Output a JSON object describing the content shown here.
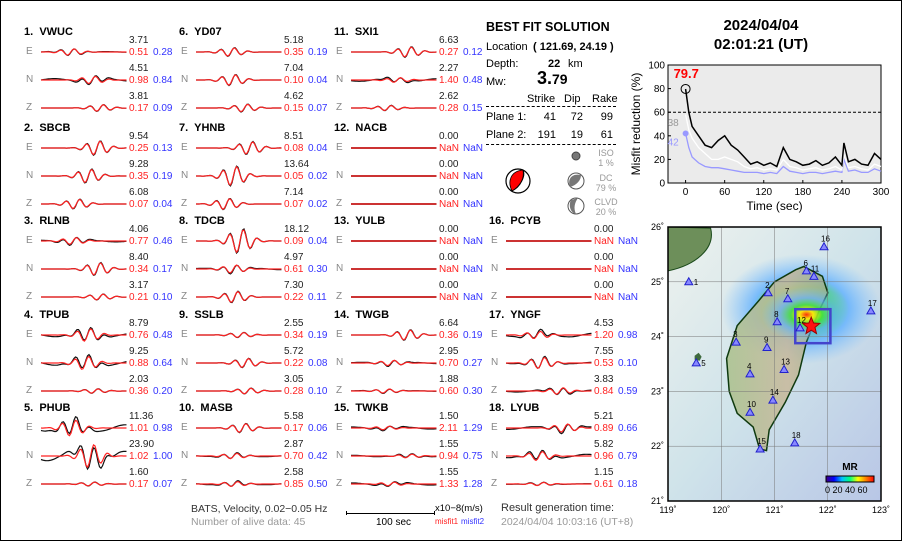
{
  "stations": [
    {
      "num": "1.",
      "name": "VWUC",
      "comps": [
        {
          "c": "E",
          "amp": "3.71",
          "m1": "0.51",
          "m2": "0.28"
        },
        {
          "c": "N",
          "amp": "4.51",
          "m1": "0.98",
          "m2": "0.84"
        },
        {
          "c": "Z",
          "amp": "3.81",
          "m1": "0.17",
          "m2": "0.09"
        }
      ]
    },
    {
      "num": "2.",
      "name": "SBCB",
      "comps": [
        {
          "c": "E",
          "amp": "9.54",
          "m1": "0.25",
          "m2": "0.13"
        },
        {
          "c": "N",
          "amp": "9.28",
          "m1": "0.35",
          "m2": "0.19"
        },
        {
          "c": "Z",
          "amp": "6.08",
          "m1": "0.07",
          "m2": "0.04"
        }
      ]
    },
    {
      "num": "3.",
      "name": "RLNB",
      "comps": [
        {
          "c": "E",
          "amp": "4.06",
          "m1": "0.77",
          "m2": "0.46"
        },
        {
          "c": "N",
          "amp": "8.40",
          "m1": "0.34",
          "m2": "0.17"
        },
        {
          "c": "Z",
          "amp": "3.17",
          "m1": "0.21",
          "m2": "0.10"
        }
      ]
    },
    {
      "num": "4.",
      "name": "TPUB",
      "comps": [
        {
          "c": "E",
          "amp": "8.79",
          "m1": "0.76",
          "m2": "0.48"
        },
        {
          "c": "N",
          "amp": "9.25",
          "m1": "0.88",
          "m2": "0.64"
        },
        {
          "c": "Z",
          "amp": "2.03",
          "m1": "0.36",
          "m2": "0.20"
        }
      ]
    },
    {
      "num": "5.",
      "name": "PHUB",
      "comps": [
        {
          "c": "E",
          "amp": "11.36",
          "m1": "1.01",
          "m2": "0.98"
        },
        {
          "c": "N",
          "amp": "23.90",
          "m1": "1.02",
          "m2": "1.00"
        },
        {
          "c": "Z",
          "amp": "1.60",
          "m1": "0.17",
          "m2": "0.07"
        }
      ]
    },
    {
      "num": "6.",
      "name": "YD07",
      "comps": [
        {
          "c": "E",
          "amp": "5.18",
          "m1": "0.35",
          "m2": "0.19"
        },
        {
          "c": "N",
          "amp": "7.04",
          "m1": "0.10",
          "m2": "0.04"
        },
        {
          "c": "Z",
          "amp": "4.62",
          "m1": "0.15",
          "m2": "0.07"
        }
      ]
    },
    {
      "num": "7.",
      "name": "YHNB",
      "comps": [
        {
          "c": "E",
          "amp": "8.51",
          "m1": "0.08",
          "m2": "0.04"
        },
        {
          "c": "N",
          "amp": "13.64",
          "m1": "0.05",
          "m2": "0.02"
        },
        {
          "c": "Z",
          "amp": "7.14",
          "m1": "0.07",
          "m2": "0.02"
        }
      ]
    },
    {
      "num": "8.",
      "name": "TDCB",
      "comps": [
        {
          "c": "E",
          "amp": "18.12",
          "m1": "0.09",
          "m2": "0.04"
        },
        {
          "c": "N",
          "amp": "4.97",
          "m1": "0.61",
          "m2": "0.30"
        },
        {
          "c": "Z",
          "amp": "7.30",
          "m1": "0.22",
          "m2": "0.11"
        }
      ]
    },
    {
      "num": "9.",
      "name": "SSLB",
      "comps": [
        {
          "c": "E",
          "amp": "2.55",
          "m1": "0.34",
          "m2": "0.19"
        },
        {
          "c": "N",
          "amp": "5.72",
          "m1": "0.22",
          "m2": "0.08"
        },
        {
          "c": "Z",
          "amp": "3.05",
          "m1": "0.28",
          "m2": "0.10"
        }
      ]
    },
    {
      "num": "10.",
      "name": "MASB",
      "comps": [
        {
          "c": "E",
          "amp": "5.58",
          "m1": "0.17",
          "m2": "0.06"
        },
        {
          "c": "N",
          "amp": "2.87",
          "m1": "0.70",
          "m2": "0.42"
        },
        {
          "c": "Z",
          "amp": "2.58",
          "m1": "0.85",
          "m2": "0.50"
        }
      ]
    },
    {
      "num": "11.",
      "name": "SXI1",
      "comps": [
        {
          "c": "E",
          "amp": "6.63",
          "m1": "0.27",
          "m2": "0.12"
        },
        {
          "c": "N",
          "amp": "2.27",
          "m1": "1.40",
          "m2": "0.48"
        },
        {
          "c": "Z",
          "amp": "2.62",
          "m1": "0.28",
          "m2": "0.15"
        }
      ]
    },
    {
      "num": "12.",
      "name": "NACB",
      "comps": [
        {
          "c": "E",
          "amp": "0.00",
          "m1": "NaN",
          "m2": "NaN"
        },
        {
          "c": "N",
          "amp": "0.00",
          "m1": "NaN",
          "m2": "NaN"
        },
        {
          "c": "Z",
          "amp": "0.00",
          "m1": "NaN",
          "m2": "NaN"
        }
      ]
    },
    {
      "num": "13.",
      "name": "YULB",
      "comps": [
        {
          "c": "E",
          "amp": "0.00",
          "m1": "NaN",
          "m2": "NaN"
        },
        {
          "c": "N",
          "amp": "0.00",
          "m1": "NaN",
          "m2": "NaN"
        },
        {
          "c": "Z",
          "amp": "0.00",
          "m1": "NaN",
          "m2": "NaN"
        }
      ]
    },
    {
      "num": "14.",
      "name": "TWGB",
      "comps": [
        {
          "c": "E",
          "amp": "6.64",
          "m1": "0.36",
          "m2": "0.19"
        },
        {
          "c": "N",
          "amp": "2.95",
          "m1": "0.70",
          "m2": "0.27"
        },
        {
          "c": "Z",
          "amp": "1.88",
          "m1": "0.60",
          "m2": "0.30"
        }
      ]
    },
    {
      "num": "15.",
      "name": "TWKB",
      "comps": [
        {
          "c": "E",
          "amp": "1.50",
          "m1": "2.11",
          "m2": "1.29"
        },
        {
          "c": "N",
          "amp": "1.55",
          "m1": "0.94",
          "m2": "0.75"
        },
        {
          "c": "Z",
          "amp": "1.55",
          "m1": "1.33",
          "m2": "1.28"
        }
      ]
    },
    {
      "num": "16.",
      "name": "PCYB",
      "comps": [
        {
          "c": "E",
          "amp": "0.00",
          "m1": "NaN",
          "m2": "NaN"
        },
        {
          "c": "N",
          "amp": "0.00",
          "m1": "NaN",
          "m2": "NaN"
        },
        {
          "c": "Z",
          "amp": "0.00",
          "m1": "NaN",
          "m2": "NaN"
        }
      ]
    },
    {
      "num": "17.",
      "name": "YNGF",
      "comps": [
        {
          "c": "E",
          "amp": "4.53",
          "m1": "1.20",
          "m2": "0.98"
        },
        {
          "c": "N",
          "amp": "7.55",
          "m1": "0.53",
          "m2": "0.10"
        },
        {
          "c": "Z",
          "amp": "3.83",
          "m1": "0.84",
          "m2": "0.59"
        }
      ]
    },
    {
      "num": "18.",
      "name": "LYUB",
      "comps": [
        {
          "c": "E",
          "amp": "5.21",
          "m1": "0.89",
          "m2": "0.66"
        },
        {
          "c": "N",
          "amp": "5.82",
          "m1": "0.96",
          "m2": "0.79"
        },
        {
          "c": "Z",
          "amp": "1.15",
          "m1": "0.61",
          "m2": "0.18"
        }
      ]
    }
  ],
  "solution": {
    "title": "BEST FIT SOLUTION",
    "location_label": "Location",
    "location": "( 121.69,  24.19 )",
    "depth_label": "Depth:",
    "depth": "22",
    "depth_unit": "km",
    "mw_label": "Mw:",
    "mw_int": "3.",
    "mw_dec": "79",
    "headers": [
      "Strike",
      "Dip",
      "Rake"
    ],
    "planes": [
      {
        "label": "Plane 1:",
        "strike": "41",
        "dip": "72",
        "rake": "99"
      },
      {
        "label": "Plane 2:",
        "strike": "191",
        "dip": "19",
        "rake": "61"
      }
    ],
    "components": [
      {
        "name": "ISO",
        "pct": "1  %"
      },
      {
        "name": "DC",
        "pct": "79 %"
      },
      {
        "name": "CLVD",
        "pct": "20 %"
      }
    ]
  },
  "event_time": {
    "date": "2024/04/04",
    "time": "02:01:21  (UT)"
  },
  "footer": {
    "info": "BATS, Velocity, 0.02−0.05 Hz",
    "alive": "Number of alive data: 45",
    "scale": "100 sec",
    "unit": "x10−8(m/s)",
    "misfit1": "misfit1",
    "misfit2": "misfit2",
    "result_label": "Result generation time:",
    "result_time": "2024/04/04 10:03:16 (UT+8)"
  },
  "chart_data": {
    "type": "line",
    "xlabel": "Time (sec)",
    "ylabel": "Misfit reduction (%)",
    "xlim": [
      -27,
      300
    ],
    "ylim": [
      0,
      100
    ],
    "xticks": [
      "0",
      "60",
      "120",
      "180",
      "240",
      "300"
    ],
    "yticks": [
      "0",
      "20",
      "40",
      "60",
      "80",
      "100"
    ],
    "threshold": 60,
    "peak_label": "79.7",
    "label_white": "38",
    "label_blue": "42",
    "x": [
      0,
      5,
      10,
      20,
      30,
      40,
      50,
      60,
      70,
      80,
      90,
      100,
      110,
      120,
      130,
      140,
      150,
      160,
      170,
      180,
      190,
      200,
      210,
      220,
      230,
      240,
      243,
      250,
      260,
      270,
      280,
      290,
      300
    ],
    "series": [
      {
        "color": "#000000",
        "values": [
          79.7,
          60,
          48,
          40,
          32,
          30,
          36,
          40,
          32,
          28,
          22,
          16,
          18,
          15,
          17,
          14,
          30,
          20,
          18,
          15,
          16,
          19,
          15,
          17,
          22,
          15,
          34,
          18,
          20,
          16,
          15,
          25,
          20
        ]
      },
      {
        "color": "#ffffff",
        "values": [
          58,
          45,
          38,
          30,
          25,
          20,
          20,
          22,
          20,
          18,
          14,
          12,
          13,
          11,
          12,
          11,
          20,
          14,
          13,
          11,
          12,
          13,
          11,
          12,
          14,
          11,
          24,
          13,
          14,
          12,
          11,
          16,
          14
        ]
      },
      {
        "color": "#9999ff",
        "values": [
          42,
          30,
          22,
          17,
          14,
          13,
          13,
          12,
          11,
          10,
          9,
          9,
          9,
          8,
          9,
          8,
          14,
          10,
          9,
          8,
          9,
          9,
          8,
          9,
          10,
          9,
          20,
          10,
          11,
          9,
          9,
          12,
          10
        ]
      }
    ],
    "colors": {
      "background": "#ebebeb",
      "peak": "#ff0000"
    }
  },
  "map": {
    "lon_ticks": [
      "119˚",
      "120˚",
      "121˚",
      "122˚",
      "123˚"
    ],
    "lat_ticks": [
      "21˚",
      "22˚",
      "23˚",
      "24˚",
      "25˚",
      "26˚"
    ],
    "event": {
      "lon": 121.69,
      "lat": 24.19
    },
    "colorbar_title": "MR",
    "colorbar_ticks": "0 20 40 60",
    "stations": [
      {
        "n": "1",
        "lon": 119.39,
        "lat": 25.0
      },
      {
        "n": "2",
        "lon": 120.88,
        "lat": 24.8
      },
      {
        "n": "3",
        "lon": 120.28,
        "lat": 23.9
      },
      {
        "n": "4",
        "lon": 120.54,
        "lat": 23.32
      },
      {
        "n": "5",
        "lon": 119.53,
        "lat": 23.52
      },
      {
        "n": "6",
        "lon": 121.6,
        "lat": 25.2
      },
      {
        "n": "7",
        "lon": 121.25,
        "lat": 24.69
      },
      {
        "n": "8",
        "lon": 121.05,
        "lat": 24.27
      },
      {
        "n": "9",
        "lon": 120.86,
        "lat": 23.8
      },
      {
        "n": "10",
        "lon": 120.54,
        "lat": 22.62
      },
      {
        "n": "11",
        "lon": 121.74,
        "lat": 25.1
      },
      {
        "n": "12",
        "lon": 121.48,
        "lat": 24.16
      },
      {
        "n": "13",
        "lon": 121.18,
        "lat": 23.4
      },
      {
        "n": "14",
        "lon": 120.97,
        "lat": 22.84
      },
      {
        "n": "15",
        "lon": 120.73,
        "lat": 21.95
      },
      {
        "n": "16",
        "lon": 121.93,
        "lat": 25.64
      },
      {
        "n": "17",
        "lon": 122.81,
        "lat": 24.47
      },
      {
        "n": "18",
        "lon": 121.38,
        "lat": 22.06
      }
    ]
  }
}
